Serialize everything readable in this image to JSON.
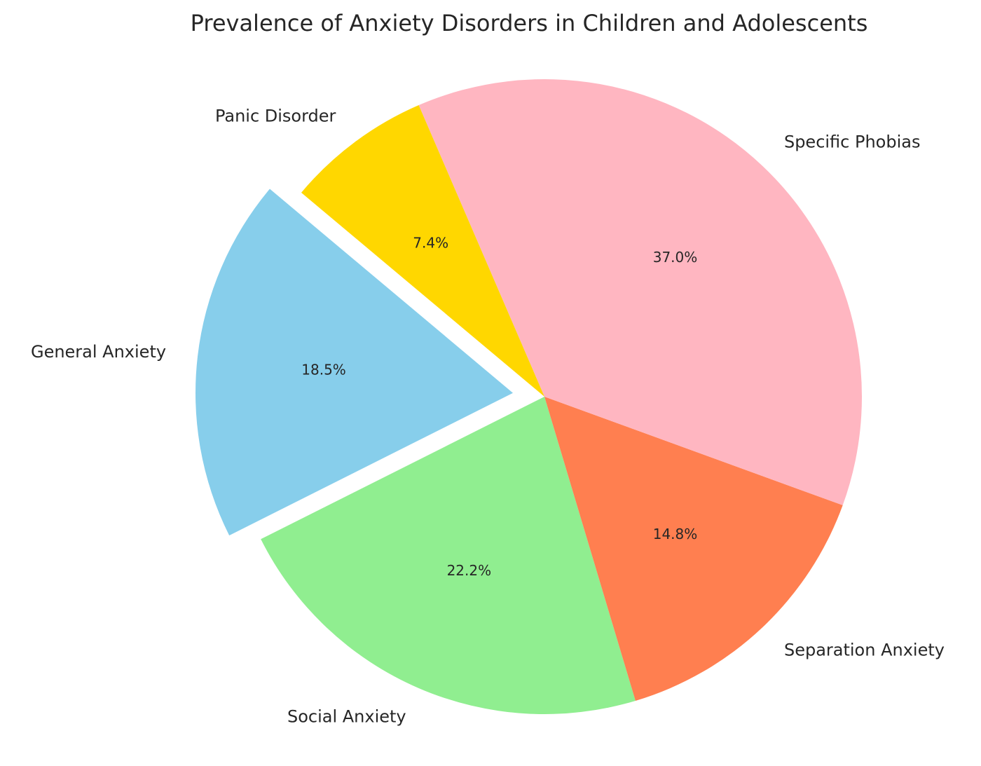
{
  "chart_data": {
    "type": "pie",
    "title": "Prevalence of Anxiety Disorders in Children and Adolescents",
    "categories": [
      "General Anxiety",
      "Social Anxiety",
      "Separation Anxiety",
      "Specific Phobias",
      "Panic Disorder"
    ],
    "values": [
      18.5,
      22.2,
      14.8,
      37.0,
      7.4
    ],
    "value_labels": [
      "18.5%",
      "22.2%",
      "14.8%",
      "37.0%",
      "7.4%"
    ],
    "colors": [
      "#87CEEB",
      "#90EE90",
      "#FF7F50",
      "#FFB6C1",
      "#FFD700"
    ],
    "start_angle_deg": 140,
    "direction": "counterclockwise",
    "exploded": [
      "General Anxiety"
    ],
    "legend": "none"
  }
}
